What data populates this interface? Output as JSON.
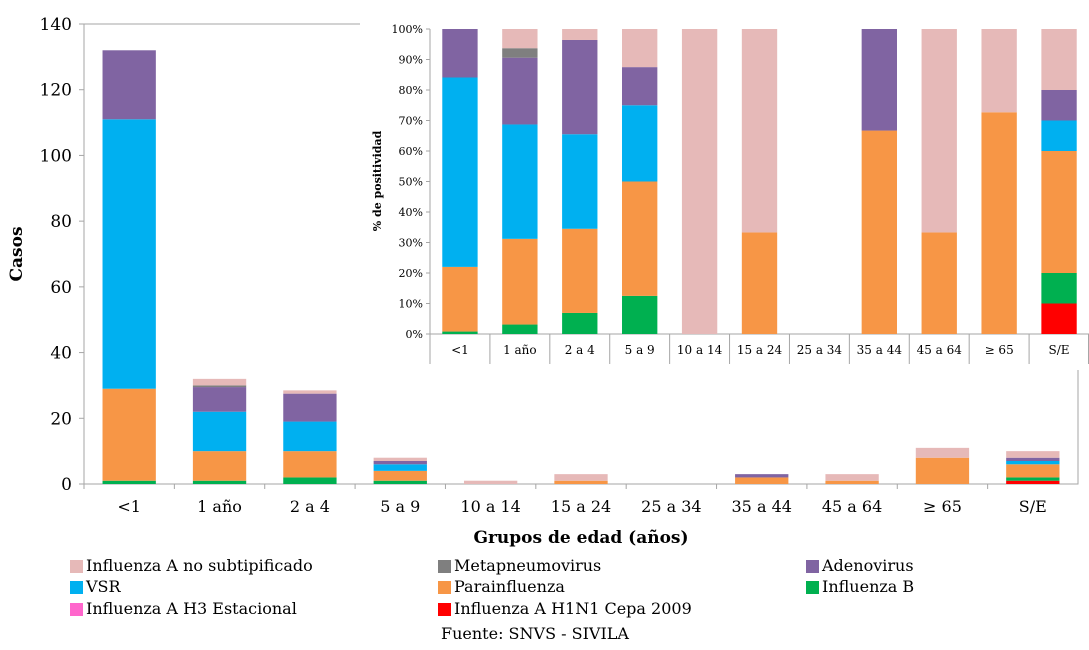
{
  "chart_data": [
    {
      "type": "bar",
      "stacked": true,
      "title": "",
      "xlabel": "Grupos de edad (años)",
      "ylabel": "Casos",
      "ylim": [
        0,
        140
      ],
      "y_ticks": [
        "0",
        "20",
        "40",
        "60",
        "80",
        "100",
        "120",
        "140"
      ],
      "categories": [
        "<1",
        "1 año",
        "2 a 4",
        "5 a 9",
        "10 a 14",
        "15 a 24",
        "25 a 34",
        "35 a 44",
        "45 a 64",
        "≥ 65",
        "S/E"
      ],
      "series": [
        {
          "name": "Influenza A H1N1 Cepa 2009",
          "color": "#ff0000",
          "values": [
            0,
            0,
            0,
            0,
            0,
            0,
            0,
            0,
            0,
            0,
            1
          ]
        },
        {
          "name": "Influenza A H3 Estacional",
          "color": "#ff66cc",
          "values": [
            0,
            0,
            0,
            0,
            0,
            0,
            0,
            0,
            0,
            0,
            0
          ]
        },
        {
          "name": "Influenza B",
          "color": "#00b050",
          "values": [
            1,
            1,
            2,
            1,
            0,
            0,
            0,
            0,
            0,
            0,
            1
          ]
        },
        {
          "name": "Parainfluenza",
          "color": "#f79646",
          "values": [
            28,
            9,
            8,
            3,
            0,
            1,
            0,
            2,
            1,
            8,
            4
          ]
        },
        {
          "name": "VSR",
          "color": "#00b0f0",
          "values": [
            82,
            12,
            9,
            2,
            0,
            0,
            0,
            0,
            0,
            0,
            1
          ]
        },
        {
          "name": "Adenovirus",
          "color": "#8064a2",
          "values": [
            21,
            7.5,
            8.5,
            1,
            0,
            0,
            0,
            1,
            0,
            0,
            1
          ]
        },
        {
          "name": "Metapneumovirus",
          "color": "#7f7f7f",
          "values": [
            0,
            0.5,
            0,
            0,
            0,
            0,
            0,
            0,
            0,
            0,
            0
          ]
        },
        {
          "name": "Influenza A no subtipificado",
          "color": "#e6b9b8",
          "values": [
            0,
            2,
            1,
            1,
            1,
            2,
            0,
            0,
            2,
            3,
            2
          ]
        }
      ]
    },
    {
      "type": "bar",
      "stacked": true,
      "normalized": true,
      "title": "",
      "xlabel": "",
      "ylabel": "% de positividad",
      "ylim": [
        0,
        100
      ],
      "y_ticks": [
        "0%",
        "10%",
        "20%",
        "30%",
        "40%",
        "50%",
        "60%",
        "70%",
        "80%",
        "90%",
        "100%"
      ],
      "categories": [
        "<1",
        "1 año",
        "2 a 4",
        "5 a 9",
        "10 a 14",
        "15 a 24",
        "25 a 34",
        "35 a 44",
        "45 a 64",
        "≥ 65",
        "S/E"
      ],
      "series": [
        {
          "name": "Influenza A H1N1 Cepa 2009",
          "color": "#ff0000",
          "values": [
            0,
            0,
            0,
            0,
            0,
            0,
            0,
            0,
            0,
            0,
            10
          ]
        },
        {
          "name": "Influenza A H3 Estacional",
          "color": "#ff66cc",
          "values": [
            0,
            0,
            0,
            0,
            0,
            0,
            0,
            0,
            0,
            0,
            0
          ]
        },
        {
          "name": "Influenza B",
          "color": "#00b050",
          "values": [
            0.8,
            3.1,
            6.9,
            12.5,
            0,
            0,
            0,
            0,
            0,
            0,
            10
          ]
        },
        {
          "name": "Parainfluenza",
          "color": "#f79646",
          "values": [
            21.2,
            28.1,
            27.6,
            37.5,
            0,
            33.3,
            0,
            66.7,
            33.3,
            72.7,
            40
          ]
        },
        {
          "name": "VSR",
          "color": "#00b0f0",
          "values": [
            62.1,
            37.5,
            31.0,
            25.0,
            0,
            0,
            0,
            0,
            0,
            0,
            10
          ]
        },
        {
          "name": "Adenovirus",
          "color": "#8064a2",
          "values": [
            15.9,
            21.9,
            30.9,
            12.5,
            0,
            0,
            0,
            33.3,
            0,
            0,
            10
          ]
        },
        {
          "name": "Metapneumovirus",
          "color": "#7f7f7f",
          "values": [
            0,
            3.1,
            0,
            0,
            0,
            0,
            0,
            0,
            0,
            0,
            0
          ]
        },
        {
          "name": "Influenza A no subtipificado",
          "color": "#e6b9b8",
          "values": [
            0,
            6.3,
            3.6,
            12.5,
            100,
            66.7,
            0,
            0,
            66.7,
            27.3,
            20
          ]
        }
      ]
    }
  ],
  "legend": [
    {
      "label": "Influenza A no subtipificado",
      "color": "#e6b9b8"
    },
    {
      "label": "Metapneumovirus",
      "color": "#7f7f7f"
    },
    {
      "label": "Adenovirus",
      "color": "#8064a2"
    },
    {
      "label": "VSR",
      "color": "#00b0f0"
    },
    {
      "label": "Parainfluenza",
      "color": "#f79646"
    },
    {
      "label": "Influenza B",
      "color": "#00b050"
    },
    {
      "label": "Influenza A H3 Estacional",
      "color": "#ff66cc"
    },
    {
      "label": "Influenza A H1N1 Cepa 2009",
      "color": "#ff0000"
    }
  ],
  "source": "Fuente: SNVS - SIVILA"
}
